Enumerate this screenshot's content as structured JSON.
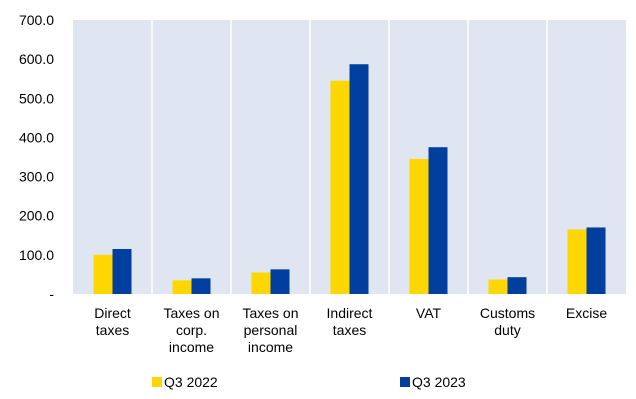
{
  "chart_data": {
    "type": "bar",
    "title": "",
    "xlabel": "",
    "ylabel": "",
    "categories": [
      [
        "Direct",
        "taxes"
      ],
      [
        "Taxes on",
        "corp.",
        "income"
      ],
      [
        "Taxes on",
        "personal",
        "income"
      ],
      [
        "Indirect",
        "taxes"
      ],
      [
        "VAT"
      ],
      [
        "Customs",
        "duty"
      ],
      [
        "Excise"
      ]
    ],
    "series": [
      {
        "name": "Q3 2022",
        "color": "#ffd700",
        "values": [
          100,
          35,
          55,
          545,
          345,
          37,
          165
        ]
      },
      {
        "name": "Q3 2023",
        "color": "#003f9e",
        "values": [
          115,
          40,
          63,
          587,
          375,
          43,
          170
        ]
      }
    ],
    "ylim": [
      0,
      700
    ],
    "yticks": [
      {
        "value": 0,
        "label": "-"
      },
      {
        "value": 100,
        "label": "100.0"
      },
      {
        "value": 200,
        "label": "200.0"
      },
      {
        "value": 300,
        "label": "300.0"
      },
      {
        "value": 400,
        "label": "400.0"
      },
      {
        "value": 500,
        "label": "500.0"
      },
      {
        "value": 600,
        "label": "600.0"
      },
      {
        "value": 700,
        "label": "700.0"
      }
    ],
    "grid": "vertical category separators",
    "plot_background": "#dfe6f2",
    "legend_position": "bottom"
  }
}
